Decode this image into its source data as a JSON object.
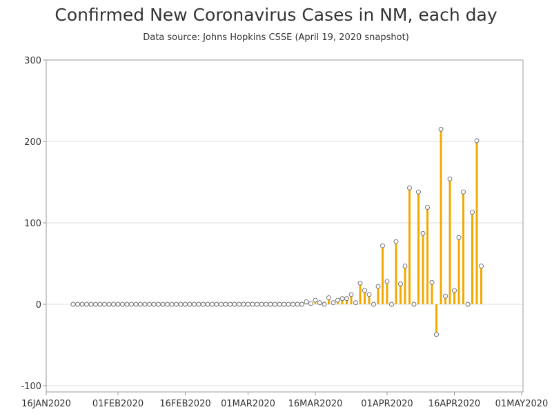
{
  "chart_data": {
    "type": "bar",
    "title": "Confirmed New Coronavirus Cases in NM, each day",
    "subtitle": "Data source: Johns Hopkins CSSE (April 19, 2020 snapshot)",
    "xlabel": "",
    "ylabel": "",
    "x_start": "2020-01-22",
    "x_ticks": [
      "16JAN2020",
      "01FEB2020",
      "16FEB2020",
      "01MAR2020",
      "16MAR2020",
      "01APR2020",
      "16APR2020",
      "01MAY2020"
    ],
    "y_ticks": [
      -100,
      0,
      100,
      200,
      300
    ],
    "ylim": [
      -100,
      300
    ],
    "grid": true,
    "colors": {
      "bar": "#f2a900",
      "marker_fill": "#ffffff",
      "marker_stroke": "#666666",
      "grid": "#dcdcdc",
      "axis": "#999999"
    },
    "values": [
      0,
      0,
      0,
      0,
      0,
      0,
      0,
      0,
      0,
      0,
      0,
      0,
      0,
      0,
      0,
      0,
      0,
      0,
      0,
      0,
      0,
      0,
      0,
      0,
      0,
      0,
      0,
      0,
      0,
      0,
      0,
      0,
      0,
      0,
      0,
      0,
      0,
      0,
      0,
      0,
      0,
      0,
      0,
      0,
      0,
      0,
      0,
      0,
      0,
      0,
      0,
      0,
      3,
      1,
      5,
      2,
      0,
      8,
      2,
      5,
      7,
      7,
      12,
      2,
      26,
      17,
      12,
      0,
      22,
      72,
      28,
      0,
      77,
      25,
      47,
      143,
      0,
      138,
      87,
      119,
      27,
      -37,
      215,
      10,
      154,
      17,
      82,
      138,
      0,
      113,
      201,
      47
    ]
  }
}
